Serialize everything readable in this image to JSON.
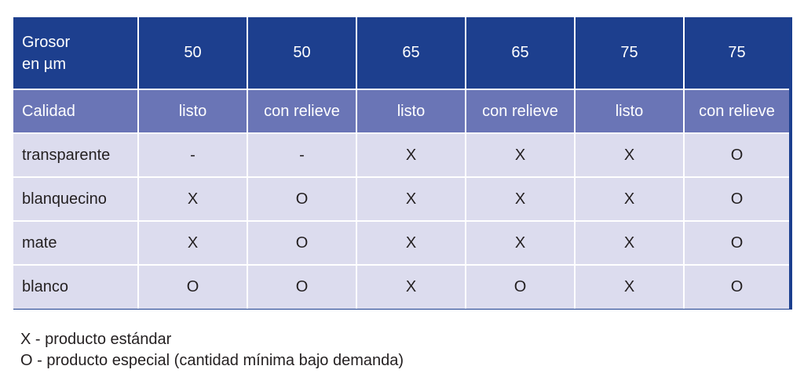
{
  "table": {
    "thickness_label_line1": "Grosor",
    "thickness_label_line2": "en µm",
    "thicknesses": [
      "50",
      "50",
      "65",
      "65",
      "75",
      "75"
    ],
    "quality_label": "Calidad",
    "qualities": [
      "listo",
      "con relieve",
      "listo",
      "con relieve",
      "listo",
      "con relieve"
    ],
    "rows": [
      {
        "name": "transparente",
        "values": [
          "-",
          "-",
          "X",
          "X",
          "X",
          "O"
        ]
      },
      {
        "name": "blanquecino",
        "values": [
          "X",
          "O",
          "X",
          "X",
          "X",
          "O"
        ]
      },
      {
        "name": "mate",
        "values": [
          "X",
          "O",
          "X",
          "X",
          "X",
          "O"
        ]
      },
      {
        "name": "blanco",
        "values": [
          "O",
          "O",
          "X",
          "O",
          "X",
          "O"
        ]
      }
    ],
    "colors": {
      "header_bg": "#1d3f8e",
      "subheader_bg": "#6a75b6",
      "cell_bg": "#dcdcee",
      "frame": "#1b3f8f"
    }
  },
  "legend": {
    "standard": "X - producto estándar",
    "special": "O - producto especial (cantidad mínima bajo demanda)"
  }
}
